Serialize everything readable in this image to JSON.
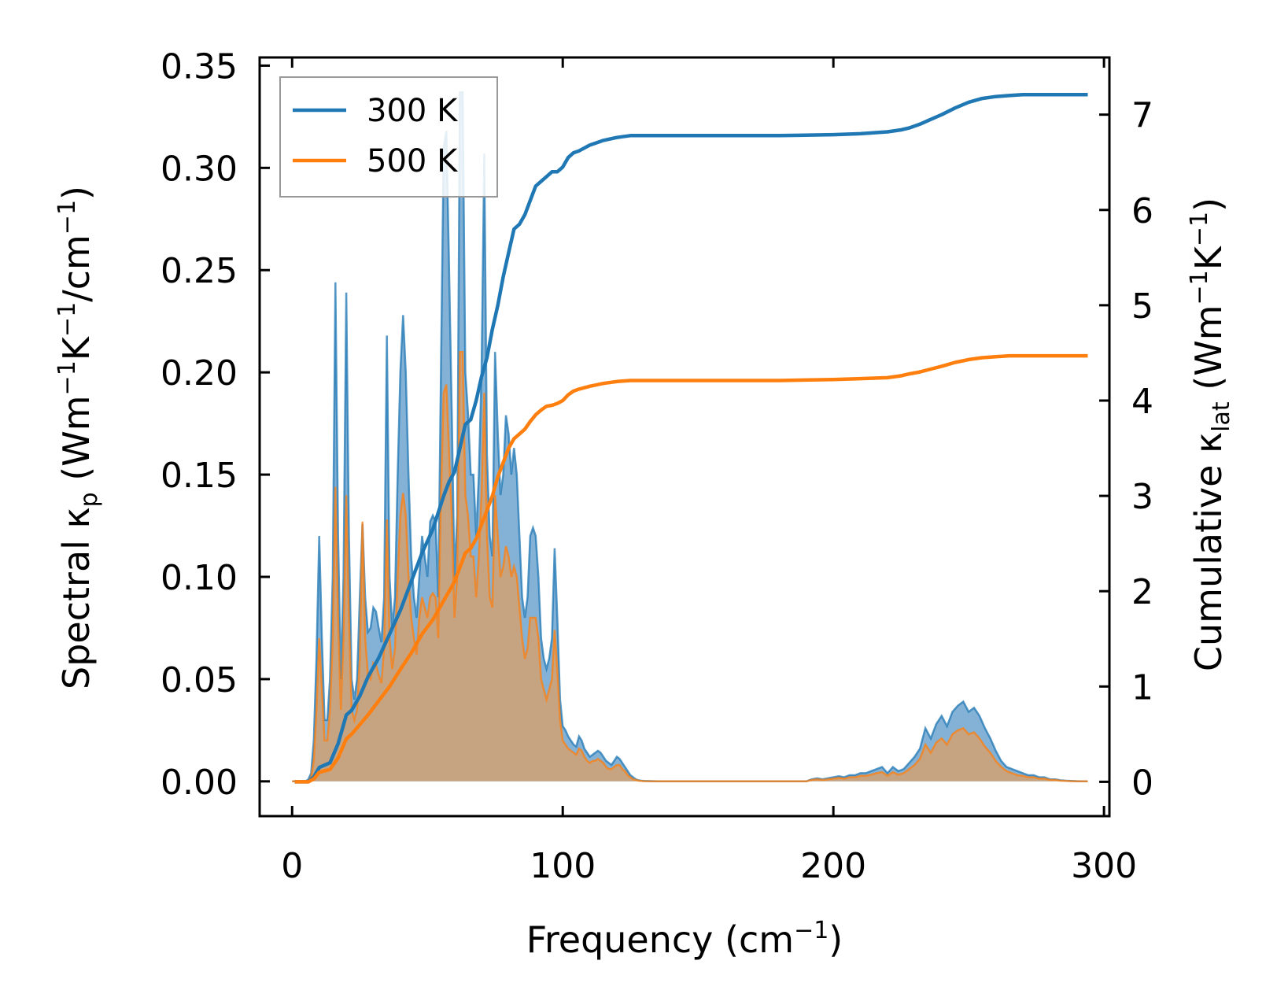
{
  "chart_data": {
    "type": "line",
    "xlabel": {
      "main": "Frequency (cm",
      "sup": "−1",
      "end": ")"
    },
    "ylabel_left": {
      "p1": "Spectral κ",
      "sub": "p",
      "p2": " (Wm",
      "sup1": "−1",
      "p3": "K",
      "sup2": "−1",
      "p4": "/cm",
      "sup3": "−1",
      "p5": ")"
    },
    "ylabel_right": {
      "p1": "Cumulative κ",
      "sub": "lat",
      "p2": " (Wm",
      "sup1": "−1",
      "p3": "K",
      "sup2": "−1",
      "p4": ")"
    },
    "xlim": [
      -12,
      302
    ],
    "ylim_left": [
      -0.017,
      0.354
    ],
    "ylim_right": [
      -0.36,
      7.6
    ],
    "xticks": [
      0,
      100,
      200,
      300
    ],
    "xtick_labels": [
      "0",
      "100",
      "200",
      "300"
    ],
    "yticks_left": [
      0.0,
      0.05,
      0.1,
      0.15,
      0.2,
      0.25,
      0.3,
      0.35
    ],
    "ytick_labels_left": [
      "0.00",
      "0.05",
      "0.10",
      "0.15",
      "0.20",
      "0.25",
      "0.30",
      "0.35"
    ],
    "yticks_right": [
      0,
      1,
      2,
      3,
      4,
      5,
      6,
      7
    ],
    "ytick_labels_right": [
      "0",
      "1",
      "2",
      "3",
      "4",
      "5",
      "6",
      "7"
    ],
    "legend": {
      "position": "upper-left",
      "entries": [
        "300 K",
        "500 K"
      ]
    },
    "colors": {
      "s300": "#1f77b4",
      "s500": "#ff7f0e",
      "fill300": "#6fa5cf",
      "fill500": "#d8a06c"
    },
    "x": [
      0,
      1,
      3,
      5,
      6,
      7,
      8,
      9,
      10,
      11,
      12,
      13,
      14,
      15,
      16,
      17,
      18,
      19,
      20,
      21,
      22,
      23,
      24,
      25,
      26,
      27,
      28,
      29,
      30,
      31,
      32,
      33,
      34,
      35,
      36,
      37,
      38,
      39,
      40,
      41,
      42,
      43,
      44,
      45,
      46,
      47,
      48,
      49,
      50,
      51,
      52,
      53,
      54,
      55,
      56,
      57,
      58,
      59,
      60,
      61,
      62,
      63,
      64,
      65,
      66,
      67,
      68,
      69,
      70,
      71,
      72,
      73,
      74,
      75,
      76,
      77,
      78,
      79,
      80,
      81,
      82,
      83,
      84,
      85,
      86,
      87,
      88,
      89,
      90,
      91,
      92,
      93,
      94,
      95,
      96,
      97,
      98,
      99,
      100,
      101,
      102,
      103,
      104,
      105,
      106,
      107,
      108,
      109,
      110,
      111,
      112,
      113,
      114,
      115,
      116,
      117,
      118,
      119,
      120,
      121,
      122,
      123,
      124,
      125,
      126,
      127,
      128,
      129,
      130,
      135,
      140,
      150,
      160,
      170,
      180,
      185,
      190,
      192,
      194,
      196,
      198,
      200,
      202,
      204,
      206,
      208,
      210,
      212,
      214,
      216,
      218,
      220,
      222,
      224,
      226,
      228,
      230,
      232,
      234,
      236,
      238,
      240,
      242,
      244,
      246,
      248,
      250,
      252,
      254,
      256,
      258,
      260,
      262,
      264,
      266,
      268,
      270,
      272,
      274,
      276,
      278,
      280,
      282,
      284,
      286,
      288,
      290,
      292,
      294
    ],
    "series_spectral": [
      {
        "name": "300 K",
        "values": [
          0,
          0,
          0,
          0,
          0.001,
          0.004,
          0.02,
          0.06,
          0.12,
          0.07,
          0.03,
          0.03,
          0.05,
          0.1,
          0.244,
          0.12,
          0.05,
          0.1,
          0.239,
          0.12,
          0.05,
          0.04,
          0.05,
          0.09,
          0.126,
          0.09,
          0.073,
          0.075,
          0.085,
          0.083,
          0.075,
          0.068,
          0.09,
          0.218,
          0.1,
          0.075,
          0.09,
          0.15,
          0.201,
          0.228,
          0.2,
          0.15,
          0.11,
          0.09,
          0.08,
          0.1,
          0.12,
          0.11,
          0.1,
          0.127,
          0.13,
          0.127,
          0.09,
          0.2,
          0.31,
          0.318,
          0.25,
          0.18,
          0.1,
          0.13,
          0.337,
          0.337,
          0.2,
          0.18,
          0.15,
          0.15,
          0.12,
          0.15,
          0.2,
          0.307,
          0.16,
          0.12,
          0.11,
          0.21,
          0.17,
          0.14,
          0.15,
          0.179,
          0.17,
          0.15,
          0.163,
          0.15,
          0.12,
          0.09,
          0.08,
          0.09,
          0.12,
          0.124,
          0.12,
          0.1,
          0.07,
          0.06,
          0.055,
          0.06,
          0.07,
          0.114,
          0.08,
          0.04,
          0.027,
          0.025,
          0.022,
          0.02,
          0.018,
          0.017,
          0.022,
          0.02,
          0.016,
          0.014,
          0.012,
          0.013,
          0.014,
          0.015,
          0.014,
          0.012,
          0.01,
          0.009,
          0.008,
          0.01,
          0.012,
          0.011,
          0.009,
          0.007,
          0.005,
          0.003,
          0.002,
          0.001,
          0.0005,
          0.0003,
          0.0002,
          0,
          0,
          0,
          0,
          0,
          0,
          0,
          0,
          0.001,
          0.0015,
          0.001,
          0.0015,
          0.002,
          0.0025,
          0.002,
          0.003,
          0.003,
          0.004,
          0.004,
          0.005,
          0.006,
          0.007,
          0.004,
          0.007,
          0.005,
          0.006,
          0.009,
          0.012,
          0.016,
          0.026,
          0.021,
          0.028,
          0.032,
          0.027,
          0.034,
          0.037,
          0.039,
          0.034,
          0.036,
          0.032,
          0.026,
          0.021,
          0.015,
          0.01,
          0.007,
          0.006,
          0.005,
          0.004,
          0.003,
          0.003,
          0.002,
          0.002,
          0.001,
          0.001,
          0.0005,
          0.0003,
          0.0002,
          0.0001,
          0,
          0,
          0,
          0,
          0
        ]
      },
      {
        "name": "500 K",
        "values": [
          0,
          0,
          0,
          0,
          0,
          0.002,
          0.01,
          0.035,
          0.07,
          0.045,
          0.02,
          0.02,
          0.035,
          0.07,
          0.144,
          0.08,
          0.035,
          0.07,
          0.14,
          0.08,
          0.035,
          0.03,
          0.035,
          0.06,
          0.127,
          0.07,
          0.052,
          0.05,
          0.058,
          0.057,
          0.052,
          0.048,
          0.065,
          0.128,
          0.07,
          0.055,
          0.065,
          0.1,
          0.13,
          0.141,
          0.13,
          0.1,
          0.08,
          0.07,
          0.062,
          0.08,
          0.09,
          0.085,
          0.08,
          0.09,
          0.092,
          0.09,
          0.07,
          0.14,
          0.19,
          0.194,
          0.16,
          0.13,
          0.08,
          0.1,
          0.21,
          0.21,
          0.14,
          0.13,
          0.11,
          0.11,
          0.09,
          0.11,
          0.14,
          0.19,
          0.12,
          0.09,
          0.085,
          0.14,
          0.12,
          0.1,
          0.105,
          0.115,
          0.11,
          0.1,
          0.105,
          0.1,
          0.085,
          0.07,
          0.06,
          0.065,
          0.08,
          0.08,
          0.08,
          0.07,
          0.05,
          0.045,
          0.04,
          0.045,
          0.05,
          0.074,
          0.055,
          0.03,
          0.02,
          0.018,
          0.016,
          0.015,
          0.014,
          0.013,
          0.016,
          0.015,
          0.012,
          0.01,
          0.009,
          0.01,
          0.01,
          0.011,
          0.01,
          0.009,
          0.007,
          0.006,
          0.006,
          0.007,
          0.008,
          0.008,
          0.006,
          0.005,
          0.003,
          0.002,
          0.001,
          0.0007,
          0.0003,
          0.0002,
          0.0001,
          0,
          0,
          0,
          0,
          0,
          0,
          0,
          0,
          0.0007,
          0.001,
          0.0007,
          0.001,
          0.0013,
          0.0017,
          0.0013,
          0.002,
          0.002,
          0.0027,
          0.0027,
          0.0033,
          0.004,
          0.0045,
          0.0027,
          0.0045,
          0.0033,
          0.004,
          0.006,
          0.008,
          0.011,
          0.018,
          0.014,
          0.019,
          0.021,
          0.018,
          0.023,
          0.025,
          0.026,
          0.023,
          0.024,
          0.021,
          0.017,
          0.014,
          0.01,
          0.007,
          0.005,
          0.004,
          0.003,
          0.0027,
          0.002,
          0.002,
          0.0013,
          0.0013,
          0.0007,
          0.0007,
          0.0003,
          0.0002,
          0.0001,
          0,
          0,
          0,
          0,
          0,
          0
        ]
      }
    ],
    "series_cumulative": [
      {
        "name": "300 K",
        "x": [
          1,
          6,
          8,
          10,
          14,
          17,
          20,
          22,
          25,
          28,
          32,
          36,
          40,
          44,
          48,
          52,
          56,
          58,
          60,
          62,
          64,
          66,
          68,
          70,
          72,
          74,
          76,
          78,
          80,
          82,
          84,
          86,
          88,
          90,
          92,
          94,
          96,
          98,
          100,
          102,
          104,
          106,
          110,
          115,
          120,
          125,
          130,
          140,
          160,
          180,
          200,
          210,
          220,
          225,
          228,
          232,
          236,
          240,
          245,
          250,
          255,
          260,
          265,
          270,
          280,
          290,
          294
        ],
        "values": [
          0,
          0,
          0.05,
          0.15,
          0.2,
          0.4,
          0.7,
          0.75,
          0.9,
          1.1,
          1.3,
          1.55,
          1.8,
          2.1,
          2.4,
          2.65,
          3.0,
          3.15,
          3.25,
          3.5,
          3.75,
          3.8,
          4.0,
          4.25,
          4.45,
          4.75,
          5.0,
          5.3,
          5.55,
          5.8,
          5.85,
          5.95,
          6.1,
          6.25,
          6.3,
          6.35,
          6.4,
          6.4,
          6.45,
          6.55,
          6.6,
          6.62,
          6.68,
          6.73,
          6.76,
          6.78,
          6.78,
          6.78,
          6.78,
          6.78,
          6.79,
          6.8,
          6.82,
          6.84,
          6.86,
          6.9,
          6.95,
          7.0,
          7.07,
          7.13,
          7.17,
          7.19,
          7.2,
          7.21,
          7.21,
          7.21,
          7.21
        ]
      },
      {
        "name": "500 K",
        "x": [
          1,
          6,
          8,
          10,
          14,
          17,
          20,
          22,
          25,
          28,
          32,
          36,
          40,
          44,
          48,
          52,
          56,
          58,
          60,
          62,
          64,
          66,
          68,
          70,
          72,
          74,
          76,
          78,
          80,
          82,
          84,
          86,
          88,
          90,
          92,
          94,
          96,
          98,
          100,
          102,
          104,
          106,
          110,
          115,
          120,
          125,
          130,
          140,
          160,
          180,
          200,
          210,
          220,
          225,
          228,
          232,
          236,
          240,
          245,
          250,
          255,
          260,
          265,
          270,
          280,
          290,
          294
        ],
        "values": [
          0,
          0,
          0.03,
          0.1,
          0.13,
          0.25,
          0.45,
          0.5,
          0.6,
          0.7,
          0.85,
          1.0,
          1.18,
          1.35,
          1.55,
          1.7,
          1.9,
          2.0,
          2.1,
          2.25,
          2.4,
          2.45,
          2.55,
          2.7,
          2.85,
          3.0,
          3.2,
          3.35,
          3.5,
          3.6,
          3.65,
          3.7,
          3.78,
          3.85,
          3.9,
          3.94,
          3.95,
          3.97,
          4.0,
          4.06,
          4.1,
          4.12,
          4.15,
          4.18,
          4.2,
          4.21,
          4.21,
          4.21,
          4.21,
          4.21,
          4.22,
          4.23,
          4.24,
          4.26,
          4.28,
          4.3,
          4.33,
          4.36,
          4.4,
          4.43,
          4.45,
          4.46,
          4.47,
          4.47,
          4.47,
          4.47,
          4.47
        ]
      }
    ]
  }
}
